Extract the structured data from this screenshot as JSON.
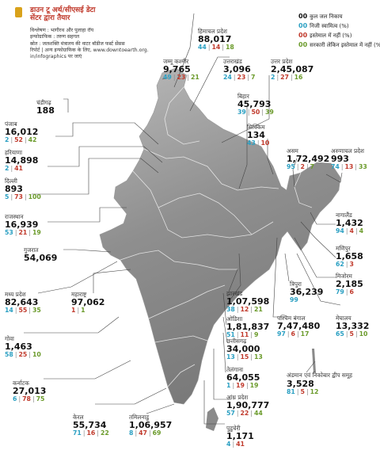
{
  "header": {
    "title_line1": "डाउन टू अर्थ/सीएसई डेटा",
    "title_line2": "सेंटर द्वारा तैयार",
    "credit_analysis": "विश्लेषण : भागीरथ और पुलाहा रॉय",
    "credit_infographic": "इन्फोग्राफिक : तरुण सहगल",
    "credit_source": "स्रोत : जलशक्ति मंत्रालय की वाटर बॉडीज फर्स्ट सेंसस",
    "credit_report_1": "रिपोर्ट | अन्य इन्फोग्राफिक के लिए, www.downtoearth.org.",
    "credit_report_2": "in/infographics पर जाएं"
  },
  "legend": {
    "total_symbol": "00",
    "total_label": "कुल जल निकाय",
    "private_symbol": "00",
    "private_label": "निजी स्वामित्व (%)",
    "unused_symbol": "00",
    "unused_label": "इस्तेमाल में नहीं (%)",
    "gov_unused_symbol": "00",
    "gov_unused_label": "सरकारी लेकिन इस्तेमाल में नहीं (%)",
    "colors": {
      "private": "#2a9fc2",
      "unused": "#c0392b",
      "gov_unused": "#6a9a2a"
    }
  },
  "states": [
    {
      "name": "चंडीगढ़",
      "total": "188",
      "private": "",
      "unused": "",
      "gov_unused": ""
    },
    {
      "name": "पंजाब",
      "total": "16,012",
      "private": "2",
      "unused": "52",
      "gov_unused": "42"
    },
    {
      "name": "हरियाणा",
      "total": "14,898",
      "private": "2",
      "unused": "41",
      "gov_unused": ""
    },
    {
      "name": "दिल्ली",
      "total": "893",
      "private": "5",
      "unused": "73",
      "gov_unused": "100"
    },
    {
      "name": "राजस्थान",
      "total": "16,939",
      "private": "53",
      "unused": "21",
      "gov_unused": "19"
    },
    {
      "name": "गुजरात",
      "total": "54,069",
      "private": "",
      "unused": "",
      "gov_unused": ""
    },
    {
      "name": "मध्य प्रदेश",
      "total": "82,643",
      "private": "14",
      "unused": "55",
      "gov_unused": "35"
    },
    {
      "name": "महाराष्ट्र",
      "total": "97,062",
      "private": "",
      "unused": "1",
      "gov_unused": "1"
    },
    {
      "name": "गोवा",
      "total": "1,463",
      "private": "58",
      "unused": "25",
      "gov_unused": "10"
    },
    {
      "name": "कर्नाटक",
      "total": "27,013",
      "private": "6",
      "unused": "78",
      "gov_unused": "75"
    },
    {
      "name": "केरल",
      "total": "55,734",
      "private": "71",
      "unused": "16",
      "gov_unused": "22"
    },
    {
      "name": "तमिलनाडु",
      "total": "1,06,957",
      "private": "8",
      "unused": "47",
      "gov_unused": "69"
    },
    {
      "name": "पुडुचेरी",
      "total": "1,171",
      "private": "4",
      "unused": "41",
      "gov_unused": ""
    },
    {
      "name": "आंध्र प्रदेश",
      "total": "1,90,777",
      "private": "57",
      "unused": "22",
      "gov_unused": "44"
    },
    {
      "name": "तेलंगाना",
      "total": "64,055",
      "private": "1",
      "unused": "19",
      "gov_unused": "19"
    },
    {
      "name": "छत्तीसगढ़",
      "total": "34,000",
      "private": "13",
      "unused": "15",
      "gov_unused": "13"
    },
    {
      "name": "ओडिशा",
      "total": "1,81,837",
      "private": "51",
      "unused": "11",
      "gov_unused": "9"
    },
    {
      "name": "झारखंड",
      "total": "1,07,598",
      "private": "38",
      "unused": "12",
      "gov_unused": "21"
    },
    {
      "name": "पश्चिम बंगाल",
      "total": "7,47,480",
      "private": "97",
      "unused": "6",
      "gov_unused": "17"
    },
    {
      "name": "त्रिपुरा",
      "total": "36,239",
      "private": "99",
      "unused": "",
      "gov_unused": ""
    },
    {
      "name": "मेघालय",
      "total": "13,332",
      "private": "65",
      "unused": "5",
      "gov_unused": "10"
    },
    {
      "name": "मिजोरम",
      "total": "2,185",
      "private": "79",
      "unused": "6",
      "gov_unused": ""
    },
    {
      "name": "मणिपुर",
      "total": "1,658",
      "private": "62",
      "unused": "3",
      "gov_unused": ""
    },
    {
      "name": "नागालैंड",
      "total": "1,432",
      "private": "94",
      "unused": "4",
      "gov_unused": "4"
    },
    {
      "name": "अरुणाचल प्रदेश",
      "total": "993",
      "private": "74",
      "unused": "13",
      "gov_unused": "33"
    },
    {
      "name": "असम",
      "total": "1,72,492",
      "private": "95",
      "unused": "2",
      "gov_unused": "7"
    },
    {
      "name": "सिक्किम",
      "total": "134",
      "private": "43",
      "unused": "10",
      "gov_unused": ""
    },
    {
      "name": "बिहार",
      "total": "45,793",
      "private": "39",
      "unused": "50",
      "gov_unused": "39"
    },
    {
      "name": "उत्तर प्रदेश",
      "total": "2,45,087",
      "private": "2",
      "unused": "27",
      "gov_unused": "16"
    },
    {
      "name": "उत्तराखंड",
      "total": "3,096",
      "private": "24",
      "unused": "23",
      "gov_unused": "7"
    },
    {
      "name": "हिमाचल प्रदेश",
      "total": "88,017",
      "private": "44",
      "unused": "14",
      "gov_unused": "18"
    },
    {
      "name": "जम्मू कश्मीर",
      "total": "9,765",
      "private": "49",
      "unused": "23",
      "gov_unused": "21"
    },
    {
      "name": "अंडमान एवं निकोबार द्वीप समूह",
      "total": "3,528",
      "private": "81",
      "unused": "5",
      "gov_unused": "12"
    }
  ]
}
